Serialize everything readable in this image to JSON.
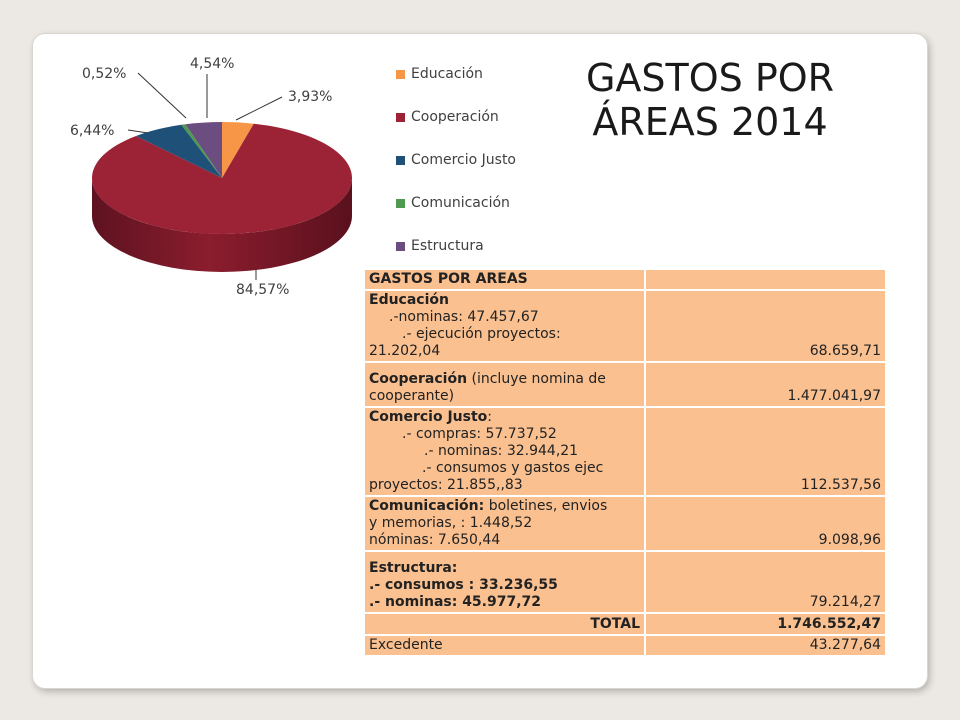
{
  "title": "GASTOS POR ÁREAS 2014",
  "colors": {
    "educacion": "#f79646",
    "cooperacion": "#9b2335",
    "comercio": "#1f5077",
    "comunicacion": "#4e9a4e",
    "estructura": "#6b4d80",
    "table_bg": "#fac090"
  },
  "chart_data": {
    "type": "pie",
    "title": "",
    "categories": [
      "Educación",
      "Cooperación",
      "Comercio Justo",
      "Comunicación",
      "Estructura"
    ],
    "values": [
      3.93,
      84.57,
      6.44,
      0.52,
      4.54
    ],
    "labels": [
      "3,93%",
      "84,57%",
      "6,44%",
      "0,52%",
      "4,54%"
    ],
    "legend_position": "right",
    "style": "3d-pie"
  },
  "table": {
    "header": "GASTOS POR AREAS",
    "educacion": {
      "name": "Educación",
      "line1": ".-nominas: 47.457,67",
      "line2a": ".- ejecución proyectos:",
      "line2b": "21.202,04",
      "total": "68.659,71"
    },
    "cooperacion": {
      "name": "Cooperación",
      "desc_a": " (incluye nomina de",
      "desc_b": "cooperante)",
      "total": "1.477.041,97"
    },
    "comercio": {
      "name": "Comercio Justo",
      "colon": ":",
      "line1": ".- compras: 57.737,52",
      "line2": ".- nominas: 32.944,21",
      "line3a": ".- consumos y gastos ejec",
      "line3b": "proyectos: 21.855,,83",
      "total": "112.537,56"
    },
    "comunicacion": {
      "name": "Comunicación:",
      "desc_a": " boletines, envios",
      "desc_b": "y memorias, : 1.448,52",
      "desc_c": "nóminas: 7.650,44",
      "total": "9.098,96"
    },
    "estructura": {
      "name": "Estructura:",
      "line1": ".- consumos : 33.236,55",
      "line2": ".- nominas: 45.977,72",
      "total": "79.214,27"
    },
    "total_row": {
      "label": "TOTAL",
      "value": "1.746.552,47"
    },
    "excedente": {
      "label": "Excedente",
      "value": "43.277,64"
    }
  }
}
